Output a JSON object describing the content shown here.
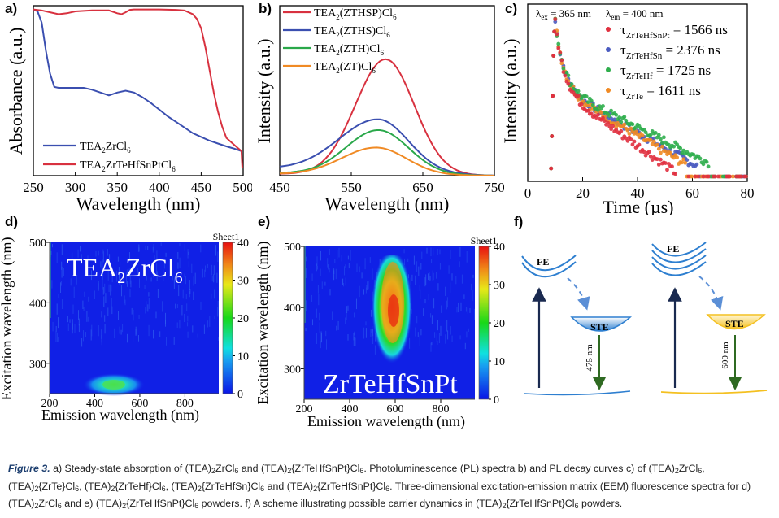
{
  "chart_data": [
    {
      "panel": "a)",
      "type": "line",
      "xlabel": "Wavelength (nm)",
      "ylabel": "Absorbance (a.u.)",
      "xlim": [
        250,
        500
      ],
      "xticks": [
        "250",
        "300",
        "350",
        "400",
        "450",
        "500"
      ],
      "legend_position": "bottom-left",
      "series": [
        {
          "name": "TEA2ZrCl6",
          "label_main": "TEA",
          "label_sub1": "2",
          "label_mid": "ZrCl",
          "label_sub2": "6",
          "color": "#3b4fb0",
          "x": [
            250,
            255,
            260,
            265,
            270,
            275,
            280,
            290,
            300,
            310,
            320,
            330,
            340,
            350,
            360,
            370,
            380,
            390,
            400,
            410,
            420,
            430,
            440,
            450,
            460,
            470,
            480,
            490,
            498
          ],
          "y": [
            1.0,
            0.99,
            0.93,
            0.78,
            0.66,
            0.59,
            0.585,
            0.585,
            0.585,
            0.585,
            0.575,
            0.56,
            0.545,
            0.56,
            0.57,
            0.56,
            0.535,
            0.505,
            0.47,
            0.435,
            0.405,
            0.375,
            0.345,
            0.325,
            0.305,
            0.29,
            0.275,
            0.262,
            0.25
          ]
        },
        {
          "name": "TEA2ZrTeHfSnPtCl6",
          "label_main": "TEA",
          "label_sub1": "2",
          "label_mid": "ZrTeHfSnPtCl",
          "label_sub2": "6",
          "color": "#d8313f",
          "x": [
            250,
            260,
            270,
            280,
            290,
            300,
            320,
            340,
            350,
            355,
            360,
            365,
            370,
            380,
            400,
            420,
            430,
            440,
            445,
            450,
            455,
            460,
            465,
            470,
            475,
            480,
            490,
            498,
            499
          ],
          "y": [
            1.0,
            0.995,
            0.985,
            0.975,
            0.98,
            0.99,
            0.995,
            0.995,
            0.98,
            0.975,
            0.985,
            0.998,
            1.0,
            1.0,
            1.0,
            0.998,
            0.995,
            0.975,
            0.95,
            0.9,
            0.8,
            0.68,
            0.56,
            0.46,
            0.38,
            0.32,
            0.28,
            0.25,
            0.16
          ]
        }
      ]
    },
    {
      "panel": "b)",
      "type": "line",
      "xlabel": "Wavelength (nm)",
      "ylabel": "Intensity (a.u.)",
      "xlim": [
        450,
        750
      ],
      "xticks": [
        "450",
        "550",
        "650",
        "750"
      ],
      "legend_position": "top-left",
      "series": [
        {
          "name": "TEA2(ZTHSP)Cl6",
          "label_main": "TEA",
          "label_sub1": "2",
          "label_mid": "(ZTHSP)Cl",
          "label_sub2": "6",
          "color": "#d8313f",
          "peak_x": 598,
          "peak_y": 0.68,
          "sigma_l": 42,
          "sigma_r": 40,
          "base": 0.01
        },
        {
          "name": "TEA2(ZTHS)Cl6",
          "label_main": "TEA",
          "label_sub1": "2",
          "label_mid": "(ZTHS)Cl",
          "label_sub2": "6",
          "color": "#3b4fb0",
          "peak_x": 588,
          "peak_y": 0.31,
          "sigma_l": 55,
          "sigma_r": 42,
          "base": 0.04
        },
        {
          "name": "TEA2(ZTH)Cl6",
          "label_main": "TEA",
          "label_sub1": "2",
          "label_mid": "(ZTH)Cl",
          "label_sub2": "6",
          "color": "#2aa84a",
          "peak_x": 588,
          "peak_y": 0.26,
          "sigma_l": 45,
          "sigma_r": 42,
          "base": 0.015
        },
        {
          "name": "TEA2(ZT)Cl6",
          "label_main": "TEA",
          "label_sub1": "2",
          "label_mid": "(ZT)Cl",
          "label_sub2": "6",
          "color": "#f08a24",
          "peak_x": 585,
          "peak_y": 0.16,
          "sigma_l": 48,
          "sigma_r": 42,
          "base": 0.01
        }
      ]
    },
    {
      "panel": "c)",
      "type": "scatter",
      "xlabel": "Time (µs)",
      "ylabel": "Intensity (a.u.)",
      "xlim": [
        0,
        80
      ],
      "xticks": [
        "0",
        "20",
        "40",
        "60",
        "80"
      ],
      "annotation_ex": {
        "sym": "λ",
        "sub": "ex",
        "text": " = 365 nm"
      },
      "annotation_em": {
        "sym": "λ",
        "sub": "em",
        "text": " = 400 nm"
      },
      "series": [
        {
          "name": "τZrTeHfSnPt",
          "sub": "ZrTeHfSnPt",
          "value": " = 1566 ns",
          "tau_ns": 1566,
          "color": "#e0303f",
          "end_time": 54,
          "offset": 0.0
        },
        {
          "name": "τZrTeHfSn",
          "sub": "ZrTeHfSn",
          "value": " = 2376 ns",
          "tau_ns": 2376,
          "color": "#4a5bc0",
          "end_time": 62,
          "offset": 0.04
        },
        {
          "name": "τZrTeHf",
          "sub": "ZrTeHf",
          "value": " = 1725 ns",
          "tau_ns": 1725,
          "color": "#2fae4c",
          "end_time": 66,
          "offset": 0.06
        },
        {
          "name": "τZrTe",
          "sub": "ZrTe",
          "value": " = 1611 ns",
          "tau_ns": 1611,
          "color": "#f08a24",
          "end_time": 58,
          "offset": 0.05
        }
      ]
    },
    {
      "panel": "d)",
      "type": "heatmap",
      "title_main": "TEA",
      "title_sub1": "2",
      "title_mid": "ZrCl",
      "title_sub2": "6",
      "xlabel": "Emission wavelength (nm)",
      "ylabel": "Excitation wavelength (nm)",
      "xlim": [
        200,
        950
      ],
      "ylim": [
        250,
        500
      ],
      "xticks": [
        "200",
        "400",
        "600",
        "800"
      ],
      "yticks": [
        "300",
        "400",
        "500"
      ],
      "colorbar": {
        "title": "Sheet1",
        "range": [
          0,
          40
        ],
        "ticks": [
          "0",
          "10",
          "20",
          "30",
          "40"
        ]
      },
      "peak": {
        "emission": 480,
        "excitation": 265,
        "value": 22
      }
    },
    {
      "panel": "e)",
      "type": "heatmap",
      "title": "ZrTeHfSnPt",
      "xlabel": "Emission wavelength (nm)",
      "ylabel": "Excitation wavelength (nm)",
      "xlim": [
        200,
        950
      ],
      "ylim": [
        250,
        500
      ],
      "xticks": [
        "200",
        "400",
        "600",
        "800"
      ],
      "yticks": [
        "300",
        "400",
        "500"
      ],
      "colorbar": {
        "title": "Sheet1",
        "range": [
          0,
          40
        ],
        "ticks": [
          "0",
          "10",
          "20",
          "30",
          "40"
        ]
      },
      "peak": {
        "emission": 600,
        "excitation": 400,
        "value": 38
      }
    }
  ],
  "panel_labels": {
    "a": "a)",
    "b": "b)",
    "c": "c)",
    "d": "d)",
    "e": "e)",
    "f": "f)"
  },
  "scheme": {
    "left": {
      "fe": "FE",
      "ste": "STE",
      "emission": "475 nm",
      "ste_color": "#2e7fd0",
      "ground_color": "#2e7fd0"
    },
    "right": {
      "fe": "FE",
      "ste": "STE",
      "emission": "600 nm",
      "ste_color": "#f4c020",
      "ground_color": "#f4c020"
    }
  },
  "caption": {
    "fig": "Figure 3.",
    "text_html": " a) Steady-state absorption of (TEA)<sub>2</sub>ZrCl<sub>6</sub> and (TEA)<sub>2</sub>{ZrTeHfSnPt}Cl<sub>6</sub>. Photoluminescence (PL) spectra b) and PL decay curves c) of (TEA)<sub>2</sub>ZrCl<sub>6</sub>, (TEA)<sub>2</sub>{ZrTe}Cl<sub>6</sub>, (TEA)<sub>2</sub>{ZrTeHf}Cl<sub>6</sub>, (TEA)<sub>2</sub>{ZrTeHfSn}Cl<sub>6</sub> and (TEA)<sub>2</sub>{ZrTeHfSnPt}Cl<sub>6</sub>. Three-dimensional excitation-emission matrix (EEM) fluorescence spectra for d) (TEA)<sub>2</sub>ZrCl<sub>6</sub> and e) (TEA)<sub>2</sub>{ZrTeHfSnPt}Cl<sub>6</sub> powders. f) A scheme illustrating possible carrier dynamics in (TEA)<sub>2</sub>{ZrTeHfSnPt}Cl<sub>6</sub> powders."
  }
}
